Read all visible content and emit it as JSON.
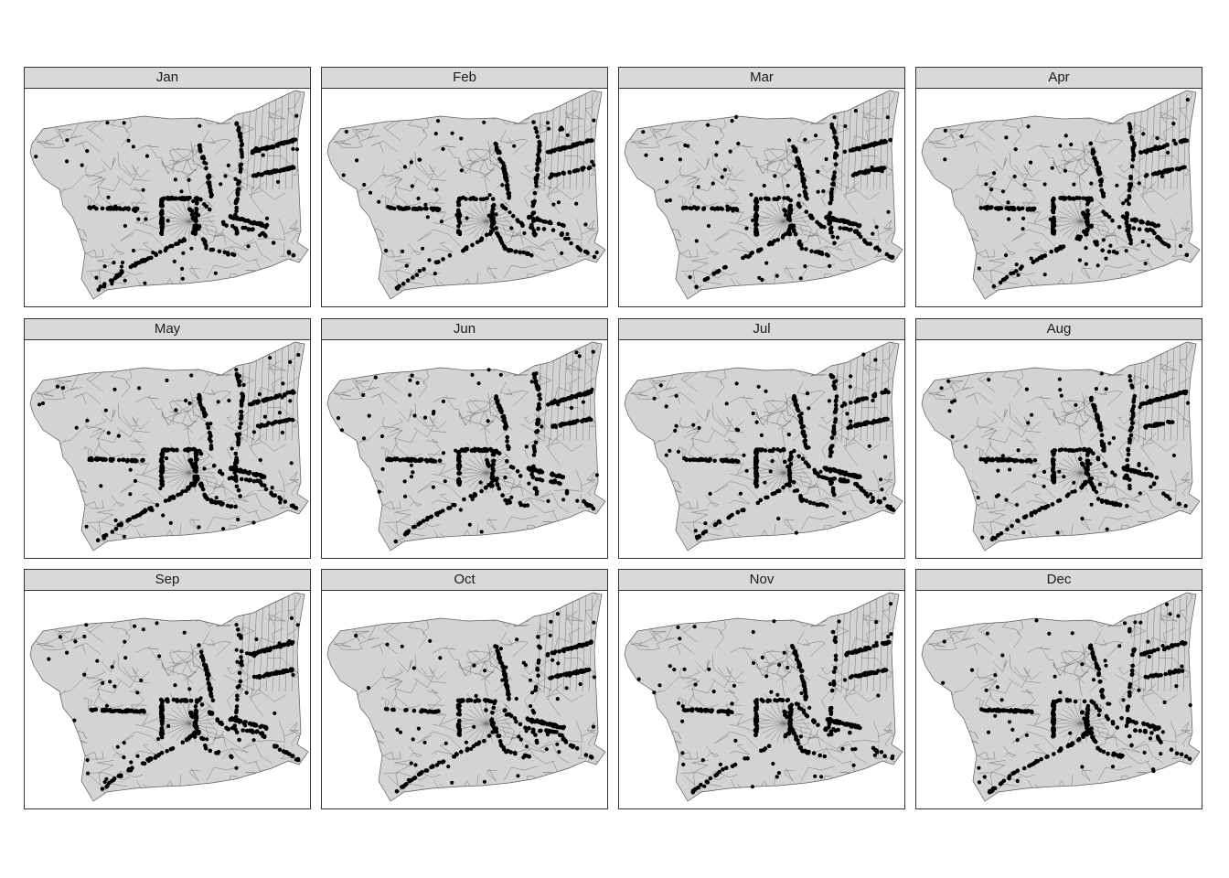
{
  "panels": [
    {
      "label": "Jan"
    },
    {
      "label": "Feb"
    },
    {
      "label": "Mar"
    },
    {
      "label": "Apr"
    },
    {
      "label": "May"
    },
    {
      "label": "Jun"
    },
    {
      "label": "Jul"
    },
    {
      "label": "Aug"
    },
    {
      "label": "Sep"
    },
    {
      "label": "Oct"
    },
    {
      "label": "Nov"
    },
    {
      "label": "Dec"
    }
  ],
  "colors": {
    "region_fill": "#d3d3d3",
    "region_border": "#5a5a5a",
    "points": "#000000",
    "strip_fill": "#d9d9d9"
  }
}
